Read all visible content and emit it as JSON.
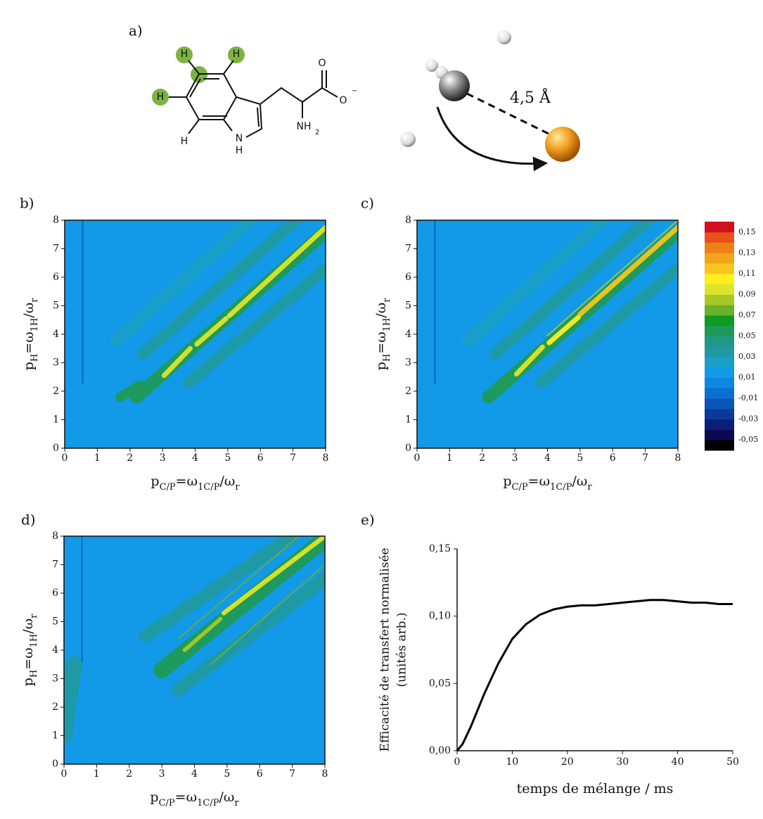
{
  "diagram": {
    "label": "a)",
    "atoms": [
      "H",
      "H",
      "H",
      "H",
      "N",
      "H",
      "NH",
      "2",
      "O",
      "O",
      "−"
    ],
    "distance": "4,5 Å"
  },
  "colorbar": {
    "levels": [
      -0.06,
      -0.05,
      -0.04,
      -0.03,
      -0.02,
      -0.01,
      0,
      0.01,
      0.02,
      0.03,
      0.04,
      0.05,
      0.06,
      0.07,
      0.08,
      0.09,
      0.1,
      0.11,
      0.12,
      0.13,
      0.14,
      0.15,
      0.16
    ],
    "colors": [
      "#000000",
      "#0a0a50",
      "#0b1f7a",
      "#0b3b99",
      "#0a55b8",
      "#0a6fd0",
      "#0f86e2",
      "#129ae8",
      "#1aa0c8",
      "#1f9aa4",
      "#209888",
      "#1e9a58",
      "#0f9a22",
      "#6ab22a",
      "#a7c928",
      "#dde52a",
      "#ffef1e",
      "#f6c61c",
      "#f2a41c",
      "#ee801a",
      "#e8521a",
      "#d0101e"
    ],
    "ticks": [
      {
        "value": -0.05,
        "label": "-0,05"
      },
      {
        "value": -0.03,
        "label": "-0,03"
      },
      {
        "value": -0.01,
        "label": "-0,01"
      },
      {
        "value": 0.01,
        "label": "0,01"
      },
      {
        "value": 0.03,
        "label": "0,03"
      },
      {
        "value": 0.05,
        "label": "0,05"
      },
      {
        "value": 0.07,
        "label": "0,07"
      },
      {
        "value": 0.09,
        "label": "0,09"
      },
      {
        "value": 0.11,
        "label": "0,11"
      },
      {
        "value": 0.13,
        "label": "0,13"
      },
      {
        "value": 0.15,
        "label": "0,15"
      }
    ]
  },
  "chart_data": [
    {
      "type": "heatmap",
      "label": "b)",
      "xlabel": [
        "p",
        "C/P",
        "=ω",
        "1C/P",
        "/ω",
        "r"
      ],
      "ylabel": [
        "p",
        "H",
        "=ω",
        "1H",
        "/ω",
        "r"
      ],
      "xlim": [
        0,
        8
      ],
      "ylim": [
        0,
        8
      ],
      "xticks": [
        0,
        1,
        2,
        3,
        4,
        5,
        6,
        7,
        8
      ],
      "yticks": [
        0,
        1,
        2,
        3,
        4,
        5,
        6,
        7,
        8
      ],
      "background": 0.015,
      "ridges": [
        {
          "x": [
            1.6,
            5.7
          ],
          "y": [
            3.8,
            8
          ],
          "value": 0.025,
          "width": 0.4
        },
        {
          "x": [
            2.4,
            7.1
          ],
          "y": [
            3.3,
            8
          ],
          "value": 0.035,
          "width": 0.35
        },
        {
          "x": [
            3.8,
            8
          ],
          "y": [
            2.3,
            6.3
          ],
          "value": 0.035,
          "width": 0.35
        },
        {
          "x": [
            1.7,
            2.3
          ],
          "y": [
            1.8,
            2.2
          ],
          "value": 0.055,
          "width": 0.3
        },
        {
          "x": [
            2.2,
            8
          ],
          "y": [
            1.8,
            7.6
          ],
          "value": 0.055,
          "width": 0.4
        },
        {
          "x": [
            3.05,
            3.85
          ],
          "y": [
            2.55,
            3.5
          ],
          "value": 0.09,
          "width": 0.15
        },
        {
          "x": [
            4.05,
            4.95
          ],
          "y": [
            3.65,
            4.55
          ],
          "value": 0.09,
          "width": 0.15
        },
        {
          "x": [
            5.05,
            8
          ],
          "y": [
            4.65,
            7.75
          ],
          "value": 0.095,
          "width": 0.15
        },
        {
          "x": [
            0.55,
            0.55
          ],
          "y": [
            2.3,
            8
          ],
          "value": -0.005,
          "width": 0.06
        }
      ]
    },
    {
      "type": "heatmap",
      "label": "c)",
      "xlabel": [
        "p",
        "C/P",
        "=ω",
        "1C/P",
        "/ω",
        "r"
      ],
      "ylabel": [
        "p",
        "H",
        "=ω",
        "1H",
        "/ω",
        "r"
      ],
      "xlim": [
        0,
        8
      ],
      "ylim": [
        0,
        8
      ],
      "xticks": [
        0,
        1,
        2,
        3,
        4,
        5,
        6,
        7,
        8
      ],
      "yticks": [
        0,
        1,
        2,
        3,
        4,
        5,
        6,
        7,
        8
      ],
      "background": 0.015,
      "ridges": [
        {
          "x": [
            1.6,
            5.7
          ],
          "y": [
            3.8,
            8
          ],
          "value": 0.025,
          "width": 0.4
        },
        {
          "x": [
            2.4,
            7.1
          ],
          "y": [
            3.3,
            8
          ],
          "value": 0.035,
          "width": 0.35
        },
        {
          "x": [
            3.8,
            8
          ],
          "y": [
            2.3,
            6.3
          ],
          "value": 0.035,
          "width": 0.35
        },
        {
          "x": [
            2.4,
            2.9
          ],
          "y": [
            2.1,
            2.5
          ],
          "value": 0.075,
          "width": 0.2
        },
        {
          "x": [
            2.2,
            8
          ],
          "y": [
            1.8,
            7.6
          ],
          "value": 0.055,
          "width": 0.4
        },
        {
          "x": [
            4,
            8
          ],
          "y": [
            3.95,
            8
          ],
          "value": 0.08,
          "width": 0.04
        },
        {
          "x": [
            3.05,
            3.85
          ],
          "y": [
            2.6,
            3.55
          ],
          "value": 0.09,
          "width": 0.15
        },
        {
          "x": [
            4.05,
            4.95
          ],
          "y": [
            3.7,
            4.6
          ],
          "value": 0.1,
          "width": 0.15
        },
        {
          "x": [
            5,
            8
          ],
          "y": [
            4.7,
            7.75
          ],
          "value": 0.11,
          "width": 0.15
        },
        {
          "x": [
            0.55,
            0.55
          ],
          "y": [
            2.3,
            8
          ],
          "value": -0.005,
          "width": 0.06
        }
      ]
    },
    {
      "type": "heatmap",
      "label": "d)",
      "xlabel": [
        "p",
        "C/P",
        "=ω",
        "1C/P",
        "/ω",
        "r"
      ],
      "ylabel": [
        "p",
        "H",
        "=ω",
        "1H",
        "/ω",
        "r"
      ],
      "xlim": [
        0,
        8
      ],
      "ylim": [
        0,
        8
      ],
      "xticks": [
        0,
        1,
        2,
        3,
        4,
        5,
        6,
        7,
        8
      ],
      "yticks": [
        0,
        1,
        2,
        3,
        4,
        5,
        6,
        7,
        8
      ],
      "background": 0.015,
      "ridges": [
        {
          "x": [
            0,
            0.3
          ],
          "y": [
            1,
            3.5
          ],
          "value": 0.03,
          "width": 0.5
        },
        {
          "x": [
            2.5,
            7
          ],
          "y": [
            4.5,
            8
          ],
          "value": 0.035,
          "width": 0.4
        },
        {
          "x": [
            3.5,
            8
          ],
          "y": [
            2.6,
            6.5
          ],
          "value": 0.035,
          "width": 0.4
        },
        {
          "x": [
            3,
            8
          ],
          "y": [
            3.3,
            7.9
          ],
          "value": 0.05,
          "width": 0.5
        },
        {
          "x": [
            3.5,
            7.2
          ],
          "y": [
            4.4,
            8
          ],
          "value": 0.07,
          "width": 0.04
        },
        {
          "x": [
            4.5,
            8
          ],
          "y": [
            3.5,
            7
          ],
          "value": 0.07,
          "width": 0.04
        },
        {
          "x": [
            3.7,
            4.8
          ],
          "y": [
            4,
            5.1
          ],
          "value": 0.085,
          "width": 0.12
        },
        {
          "x": [
            4.9,
            8
          ],
          "y": [
            5.3,
            8
          ],
          "value": 0.09,
          "width": 0.14
        },
        {
          "x": [
            0.55,
            0.55
          ],
          "y": [
            3.6,
            8
          ],
          "value": -0.005,
          "width": 0.05
        }
      ]
    },
    {
      "type": "line",
      "label": "e)",
      "xlabel": "temps de mélange / ms",
      "ylabel": [
        "Efficacité de transfert normalisée",
        "(unités arb.)"
      ],
      "xlim": [
        0,
        50
      ],
      "ylim": [
        0,
        0.15
      ],
      "xticks": [
        0,
        10,
        20,
        30,
        40,
        50
      ],
      "yticks": [
        {
          "value": 0,
          "label": "0,00"
        },
        {
          "value": 0.05,
          "label": "0,05"
        },
        {
          "value": 0.1,
          "label": "0,10"
        },
        {
          "value": 0.15,
          "label": "0,15"
        }
      ],
      "x": [
        0,
        1,
        2.5,
        5,
        7.5,
        10,
        12.5,
        15,
        17.5,
        20,
        22.5,
        25,
        27.5,
        30,
        32.5,
        35,
        37.5,
        40,
        42.5,
        45,
        47.5,
        50
      ],
      "series": [
        {
          "color": "#000000",
          "values": [
            0,
            0.005,
            0.018,
            0.043,
            0.065,
            0.083,
            0.094,
            0.101,
            0.105,
            0.107,
            0.108,
            0.108,
            0.109,
            0.11,
            0.111,
            0.112,
            0.112,
            0.111,
            0.11,
            0.11,
            0.109,
            0.109
          ]
        }
      ]
    }
  ]
}
